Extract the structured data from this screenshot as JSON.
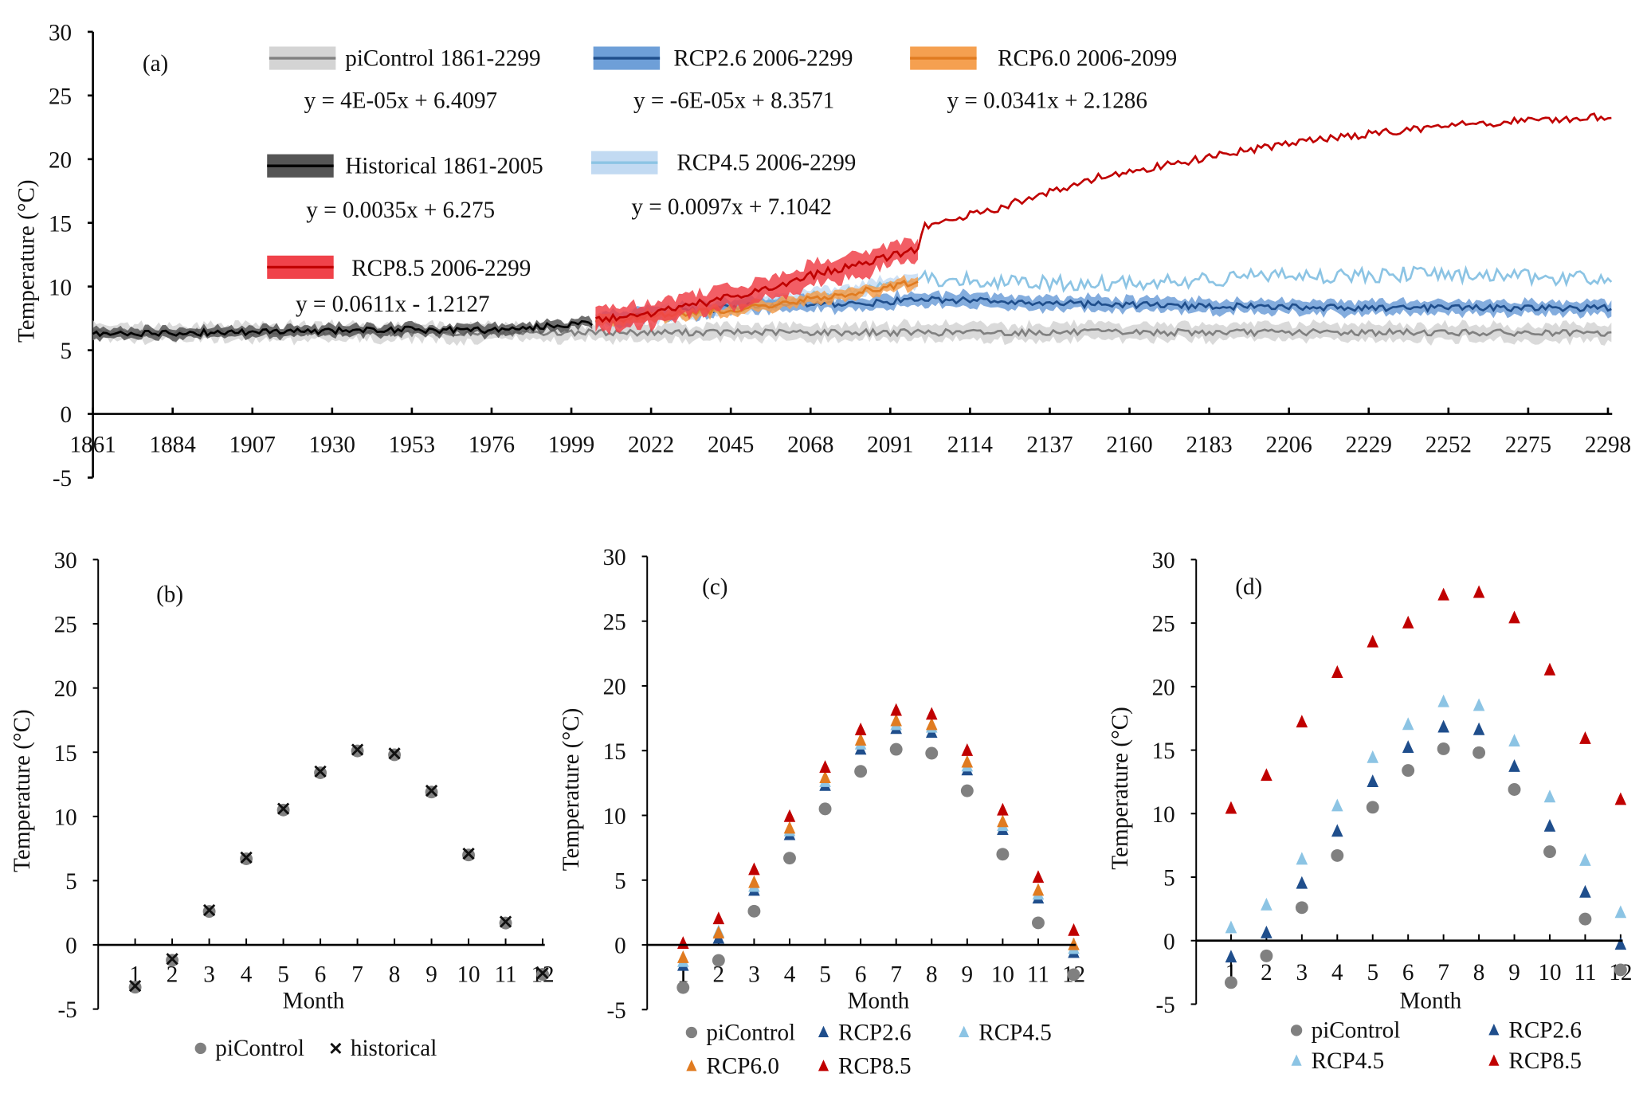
{
  "chart_data": [
    {
      "panel": "(a)",
      "type": "line",
      "ylabel": "Temperature (°C)",
      "ylim": [
        -5,
        30
      ],
      "yticks": [
        "-5",
        "0",
        "5",
        "10",
        "15",
        "20",
        "25",
        "30"
      ],
      "xlim": [
        1861,
        2298
      ],
      "xticks": [
        "1861",
        "1884",
        "1907",
        "1930",
        "1953",
        "1976",
        "1999",
        "2022",
        "2045",
        "2068",
        "2091",
        "2114",
        "2137",
        "2160",
        "2183",
        "2206",
        "2229",
        "2252",
        "2275",
        "2298"
      ],
      "series": [
        {
          "name": "piControl 1861-2299",
          "equation": "y = 4E-05x + 6.4097",
          "line_color": "#808080",
          "band_color": "#d4d4d4",
          "points": [
            [
              1861,
              6.4
            ],
            [
              1950,
              6.4
            ],
            [
              2050,
              6.4
            ],
            [
              2150,
              6.4
            ],
            [
              2250,
              6.4
            ],
            [
              2299,
              6.3
            ]
          ]
        },
        {
          "name": "Historical 1861-2005",
          "equation": "y = 0.0035x + 6.275",
          "line_color": "#000000",
          "band_color": "#555555",
          "points": [
            [
              1861,
              6.3
            ],
            [
              1900,
              6.4
            ],
            [
              1940,
              6.6
            ],
            [
              1980,
              6.6
            ],
            [
              2005,
              7.2
            ]
          ]
        },
        {
          "name": "RCP2.6 2006-2299",
          "equation": "y = -6E-05x + 8.3571",
          "line_color": "#1f4e8c",
          "band_color": "#6e9fd8",
          "points": [
            [
              2006,
              7.3
            ],
            [
              2030,
              8.0
            ],
            [
              2050,
              8.5
            ],
            [
              2080,
              8.6
            ],
            [
              2100,
              9.0
            ],
            [
              2150,
              8.6
            ],
            [
              2200,
              8.4
            ],
            [
              2250,
              8.3
            ],
            [
              2299,
              8.3
            ]
          ]
        },
        {
          "name": "RCP4.5 2006-2299",
          "equation": "y = 0.0097x + 7.1042",
          "line_color": "#8cc4e4",
          "band_color": "#c2daf2",
          "points": [
            [
              2006,
              7.3
            ],
            [
              2050,
              8.6
            ],
            [
              2080,
              9.7
            ],
            [
              2100,
              10.6
            ],
            [
              2150,
              10.2
            ],
            [
              2200,
              10.8
            ],
            [
              2250,
              11.0
            ],
            [
              2299,
              10.6
            ]
          ]
        },
        {
          "name": "RCP6.0 2006-2099",
          "equation": "y = 0.0341x + 2.1286",
          "line_color": "#e07b20",
          "band_color": "#f5a050",
          "points": [
            [
              2006,
              7.3
            ],
            [
              2050,
              8.3
            ],
            [
              2080,
              9.5
            ],
            [
              2099,
              10.4
            ]
          ]
        },
        {
          "name": "RCP8.5 2006-2299",
          "equation": "y = 0.0611x - 1.2127",
          "line_color": "#c00000",
          "band_color": "#f0424a",
          "points": [
            [
              2006,
              7.3
            ],
            [
              2030,
              8.3
            ],
            [
              2050,
              9.5
            ],
            [
              2070,
              11.0
            ],
            [
              2090,
              12.3
            ],
            [
              2099,
              13.0
            ],
            [
              2101,
              14.8
            ],
            [
              2120,
              16.0
            ],
            [
              2150,
              18.5
            ],
            [
              2180,
              20.0
            ],
            [
              2200,
              21.0
            ],
            [
              2230,
              22.0
            ],
            [
              2260,
              22.8
            ],
            [
              2299,
              23.4
            ]
          ]
        }
      ]
    },
    {
      "panel": "(b)",
      "type": "scatter",
      "xlabel": "Month",
      "ylabel": "Temperature (°C)",
      "ylim": [
        -5,
        30
      ],
      "yticks": [
        "-5",
        "0",
        "5",
        "10",
        "15",
        "20",
        "25",
        "30"
      ],
      "categories": [
        "1",
        "2",
        "3",
        "4",
        "5",
        "6",
        "7",
        "8",
        "9",
        "10",
        "11",
        "12"
      ],
      "series": [
        {
          "name": "piControl",
          "marker": "circle",
          "color": "#808080",
          "values": [
            -3.3,
            -1.2,
            2.6,
            6.7,
            10.5,
            13.4,
            15.1,
            14.8,
            11.9,
            7.0,
            1.7,
            -2.3
          ]
        },
        {
          "name": "historical",
          "marker": "x",
          "color": "#111111",
          "values": [
            -3.2,
            -1.1,
            2.7,
            6.8,
            10.6,
            13.5,
            15.2,
            14.9,
            12.0,
            7.1,
            1.8,
            -2.2
          ]
        }
      ]
    },
    {
      "panel": "(c)",
      "type": "scatter",
      "xlabel": "Month",
      "ylabel": "Temperature (°C)",
      "ylim": [
        -5,
        30
      ],
      "yticks": [
        "-5",
        "0",
        "5",
        "10",
        "15",
        "20",
        "25",
        "30"
      ],
      "categories": [
        "1",
        "2",
        "3",
        "4",
        "5",
        "6",
        "7",
        "8",
        "9",
        "10",
        "11",
        "12"
      ],
      "series": [
        {
          "name": "piControl",
          "marker": "circle",
          "color": "#808080",
          "values": [
            -3.3,
            -1.2,
            2.6,
            6.7,
            10.5,
            13.4,
            15.1,
            14.8,
            11.9,
            7.0,
            1.7,
            -2.3
          ]
        },
        {
          "name": "RCP2.6",
          "marker": "triangle",
          "color": "#1f4e8c",
          "values": [
            -1.6,
            0.5,
            4.2,
            8.5,
            12.3,
            15.1,
            16.7,
            16.4,
            13.5,
            8.9,
            3.6,
            -0.6
          ]
        },
        {
          "name": "RCP4.5",
          "marker": "triangle",
          "color": "#8cc4e4",
          "values": [
            -1.3,
            1.0,
            4.5,
            8.8,
            12.6,
            15.5,
            17.0,
            16.8,
            13.8,
            9.2,
            3.9,
            -0.3
          ]
        },
        {
          "name": "RCP6.0",
          "marker": "triangle",
          "color": "#e07b20",
          "values": [
            -1.0,
            0.9,
            4.8,
            9.0,
            12.9,
            15.8,
            17.3,
            17.0,
            14.1,
            9.5,
            4.2,
            0.0
          ]
        },
        {
          "name": "RCP8.5",
          "marker": "triangle",
          "color": "#c00000",
          "values": [
            0.1,
            2.0,
            5.8,
            9.9,
            13.7,
            16.6,
            18.1,
            17.8,
            15.0,
            10.4,
            5.2,
            1.1
          ]
        }
      ]
    },
    {
      "panel": "(d)",
      "type": "scatter",
      "xlabel": "Month",
      "ylabel": "Temperature (°C)",
      "ylim": [
        -5,
        30
      ],
      "yticks": [
        "-5",
        "0",
        "5",
        "10",
        "15",
        "20",
        "25",
        "30"
      ],
      "categories": [
        "1",
        "2",
        "3",
        "4",
        "5",
        "6",
        "7",
        "8",
        "9",
        "10",
        "11",
        "12"
      ],
      "series": [
        {
          "name": "piControl",
          "marker": "circle",
          "color": "#808080",
          "values": [
            -3.3,
            -1.2,
            2.6,
            6.7,
            10.5,
            13.4,
            15.1,
            14.8,
            11.9,
            7.0,
            1.7,
            -2.3
          ]
        },
        {
          "name": "RCP2.6",
          "marker": "triangle",
          "color": "#1f4e8c",
          "values": [
            -1.3,
            0.6,
            4.5,
            8.6,
            12.5,
            15.2,
            16.8,
            16.6,
            13.7,
            9.0,
            3.8,
            -0.3
          ]
        },
        {
          "name": "RCP4.5",
          "marker": "triangle",
          "color": "#8cc4e4",
          "values": [
            1.0,
            2.8,
            6.4,
            10.6,
            14.4,
            17.0,
            18.8,
            18.5,
            15.7,
            11.3,
            6.3,
            2.2
          ]
        },
        {
          "name": "RCP8.5",
          "marker": "triangle",
          "color": "#c00000",
          "values": [
            10.4,
            13.0,
            17.2,
            21.1,
            23.5,
            25.0,
            27.2,
            27.4,
            25.4,
            21.3,
            15.9,
            11.1
          ]
        }
      ]
    }
  ]
}
